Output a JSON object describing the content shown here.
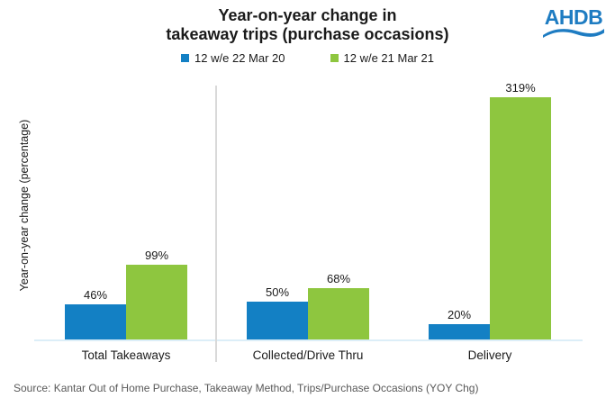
{
  "title": {
    "line1": "Year-on-year change in",
    "line2": "takeaway trips (purchase occasions)"
  },
  "logo": {
    "text": "AHDB",
    "color": "#1E7CC2"
  },
  "source": {
    "text": "Source: Kantar Out of Home Purchase, Takeaway Method, Trips/Purchase Occasions (YOY Chg)"
  },
  "chart_data": {
    "type": "bar",
    "title": "Year-on-year change in takeaway trips (purchase occasions)",
    "categories": [
      "Total Takeaways",
      "Collected/Drive Thru",
      "Delivery"
    ],
    "series": [
      {
        "name": "12 w/e 22 Mar 20",
        "color": "#1380C4",
        "values": [
          46,
          50,
          20
        ],
        "labels": [
          "46%",
          "50%",
          "20%"
        ]
      },
      {
        "name": "12 w/e 21 Mar 21",
        "color": "#8EC63F",
        "values": [
          99,
          68,
          319
        ],
        "labels": [
          "99%",
          "68%",
          "319%"
        ]
      }
    ],
    "xlabel": "",
    "ylabel": "Year-on-year change (percentage)",
    "ylim": [
      0,
      319
    ],
    "grid": false,
    "legend_position": "top",
    "data_labels": true
  }
}
